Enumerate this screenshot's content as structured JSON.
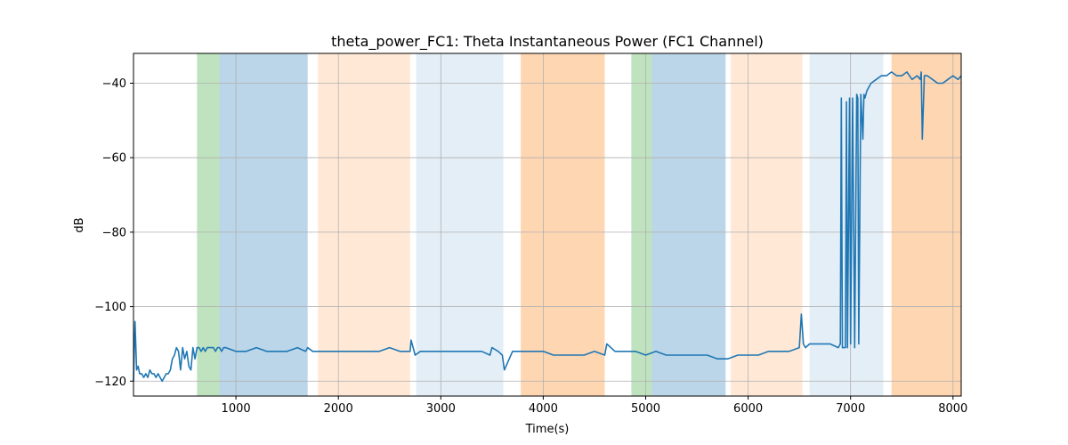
{
  "chart_data": {
    "type": "line",
    "title": "theta_power_FC1: Theta Instantaneous Power (FC1 Channel)",
    "xlabel": "Time(s)",
    "ylabel": "dB",
    "xlim": [
      0,
      8080
    ],
    "ylim": [
      -124,
      -32
    ],
    "xticks": [
      1000,
      2000,
      3000,
      4000,
      5000,
      6000,
      7000,
      8000
    ],
    "yticks": [
      -120,
      -100,
      -80,
      -60,
      -40
    ],
    "grid": true,
    "colors": {
      "line": "#1f77b4",
      "green": "#2ca02c",
      "blue": "#1f77b4",
      "orange": "#ff7f0e"
    },
    "shaded_regions": [
      {
        "x0": 620,
        "x1": 840,
        "color": "green",
        "opacity": 0.3
      },
      {
        "x0": 840,
        "x1": 1700,
        "color": "blue",
        "opacity": 0.3
      },
      {
        "x0": 1800,
        "x1": 2700,
        "color": "orange",
        "opacity": 0.17
      },
      {
        "x0": 2760,
        "x1": 3610,
        "color": "blue",
        "opacity": 0.12
      },
      {
        "x0": 3780,
        "x1": 4600,
        "color": "orange",
        "opacity": 0.32
      },
      {
        "x0": 4860,
        "x1": 5060,
        "color": "green",
        "opacity": 0.3
      },
      {
        "x0": 5060,
        "x1": 5780,
        "color": "blue",
        "opacity": 0.3
      },
      {
        "x0": 5830,
        "x1": 6530,
        "color": "orange",
        "opacity": 0.17
      },
      {
        "x0": 6600,
        "x1": 7320,
        "color": "blue",
        "opacity": 0.12
      },
      {
        "x0": 7400,
        "x1": 8080,
        "color": "orange",
        "opacity": 0.32
      }
    ],
    "series": [
      {
        "x": [
          0,
          15,
          30,
          45,
          60,
          80,
          100,
          120,
          140,
          160,
          180,
          200,
          220,
          240,
          260,
          280,
          300,
          320,
          340,
          360,
          380,
          400,
          420,
          440,
          460,
          480,
          500,
          520,
          540,
          560,
          580,
          600,
          620,
          640,
          660,
          680,
          700,
          720,
          740,
          760,
          780,
          800,
          820,
          840,
          860,
          880,
          900,
          1000,
          1100,
          1200,
          1300,
          1400,
          1500,
          1600,
          1680,
          1700,
          1750,
          1800,
          1900,
          2000,
          2100,
          2200,
          2300,
          2400,
          2500,
          2600,
          2700,
          2710,
          2750,
          2800,
          2900,
          3000,
          3100,
          3200,
          3300,
          3400,
          3480,
          3500,
          3560,
          3600,
          3620,
          3700,
          3800,
          3900,
          4000,
          4100,
          4200,
          4300,
          4400,
          4500,
          4600,
          4620,
          4700,
          4800,
          4900,
          5000,
          5100,
          5200,
          5300,
          5400,
          5500,
          5600,
          5700,
          5800,
          5900,
          6000,
          6100,
          6200,
          6300,
          6400,
          6500,
          6520,
          6540,
          6560,
          6600,
          6700,
          6800,
          6880,
          6900,
          6910,
          6920,
          6940,
          6950,
          6960,
          6970,
          6990,
          7000,
          7020,
          7040,
          7060,
          7070,
          7080,
          7100,
          7120,
          7130,
          7140,
          7160,
          7200,
          7250,
          7300,
          7350,
          7400,
          7450,
          7500,
          7550,
          7600,
          7650,
          7680,
          7690,
          7700,
          7720,
          7750,
          7800,
          7850,
          7900,
          7950,
          8000,
          8050,
          8080
        ],
        "y": [
          -120,
          -104,
          -117,
          -116,
          -118,
          -118,
          -119,
          -118,
          -119,
          -117,
          -118,
          -118,
          -119,
          -118,
          -119,
          -120,
          -119,
          -118,
          -118,
          -117,
          -114,
          -113,
          -111,
          -112,
          -117,
          -111,
          -114,
          -112,
          -116,
          -117,
          -111,
          -114,
          -111,
          -111,
          -112,
          -111,
          -112,
          -111,
          -111,
          -111,
          -111,
          -112,
          -111,
          -111,
          -112,
          -111,
          -111,
          -112,
          -112,
          -111,
          -112,
          -112,
          -112,
          -111,
          -112,
          -111,
          -112,
          -112,
          -112,
          -112,
          -112,
          -112,
          -112,
          -112,
          -111,
          -112,
          -112,
          -109,
          -113,
          -112,
          -112,
          -112,
          -112,
          -112,
          -112,
          -112,
          -113,
          -111,
          -112,
          -113,
          -117,
          -112,
          -112,
          -112,
          -112,
          -113,
          -113,
          -113,
          -113,
          -112,
          -113,
          -110,
          -112,
          -112,
          -112,
          -113,
          -112,
          -113,
          -113,
          -113,
          -113,
          -113,
          -114,
          -114,
          -113,
          -113,
          -113,
          -112,
          -112,
          -112,
          -111,
          -102,
          -110,
          -111,
          -110,
          -110,
          -110,
          -111,
          -110,
          -44,
          -111,
          -111,
          -111,
          -45,
          -111,
          -44,
          -110,
          -44,
          -111,
          -43,
          -44,
          -110,
          -43,
          -55,
          -43,
          -44,
          -42,
          -40,
          -39,
          -38,
          -38,
          -37,
          -38,
          -38,
          -37,
          -39,
          -38,
          -39,
          -37,
          -55,
          -38,
          -38,
          -39,
          -40,
          -40,
          -39,
          -38,
          -39,
          -38
        ]
      }
    ]
  }
}
